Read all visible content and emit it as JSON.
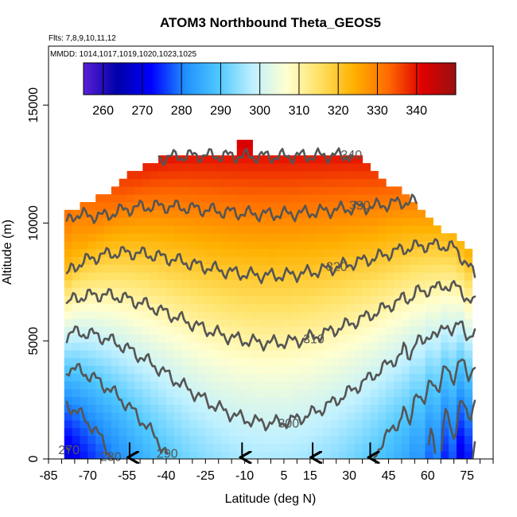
{
  "chart_data": {
    "type": "heatmap",
    "title": "ATOM3 Northbound Theta_GEOS5",
    "flights_label": "Flts: 7,8,9,10,11,12",
    "dates_label": "MMDD: 1014,1017,1019,1020,1023,1025",
    "xlabel": "Latitude (deg N)",
    "ylabel": "Altitude (m)",
    "xlim": [
      -85,
      85
    ],
    "ylim": [
      0,
      17500
    ],
    "x_ticks": [
      -85,
      -70,
      -55,
      -40,
      -25,
      -10,
      5,
      15,
      30,
      45,
      60,
      75
    ],
    "y_ticks": [
      0,
      5000,
      10000,
      15000
    ],
    "colorbar": {
      "min": 255,
      "max": 350,
      "ticks": [
        260,
        270,
        280,
        290,
        300,
        310,
        320,
        330,
        340
      ],
      "colors": [
        "#5a1fd6",
        "#0000a8",
        "#0000ff",
        "#1f8fff",
        "#4fc8ff",
        "#bff0ff",
        "#ffffd0",
        "#ffe060",
        "#ffb000",
        "#ff6a00",
        "#e00000",
        "#9a1010"
      ]
    },
    "contour_levels": [
      {
        "value": 270,
        "label": "270"
      },
      {
        "value": 280,
        "label": "280"
      },
      {
        "value": 290,
        "label": "290"
      },
      {
        "value": 300,
        "label": "300"
      },
      {
        "value": 310,
        "label": "310"
      },
      {
        "value": 320,
        "label": "320"
      },
      {
        "value": 330,
        "label": "330"
      },
      {
        "value": 340,
        "label": "340"
      }
    ],
    "arrows_latitude": [
      -54,
      -11,
      16,
      38
    ]
  }
}
